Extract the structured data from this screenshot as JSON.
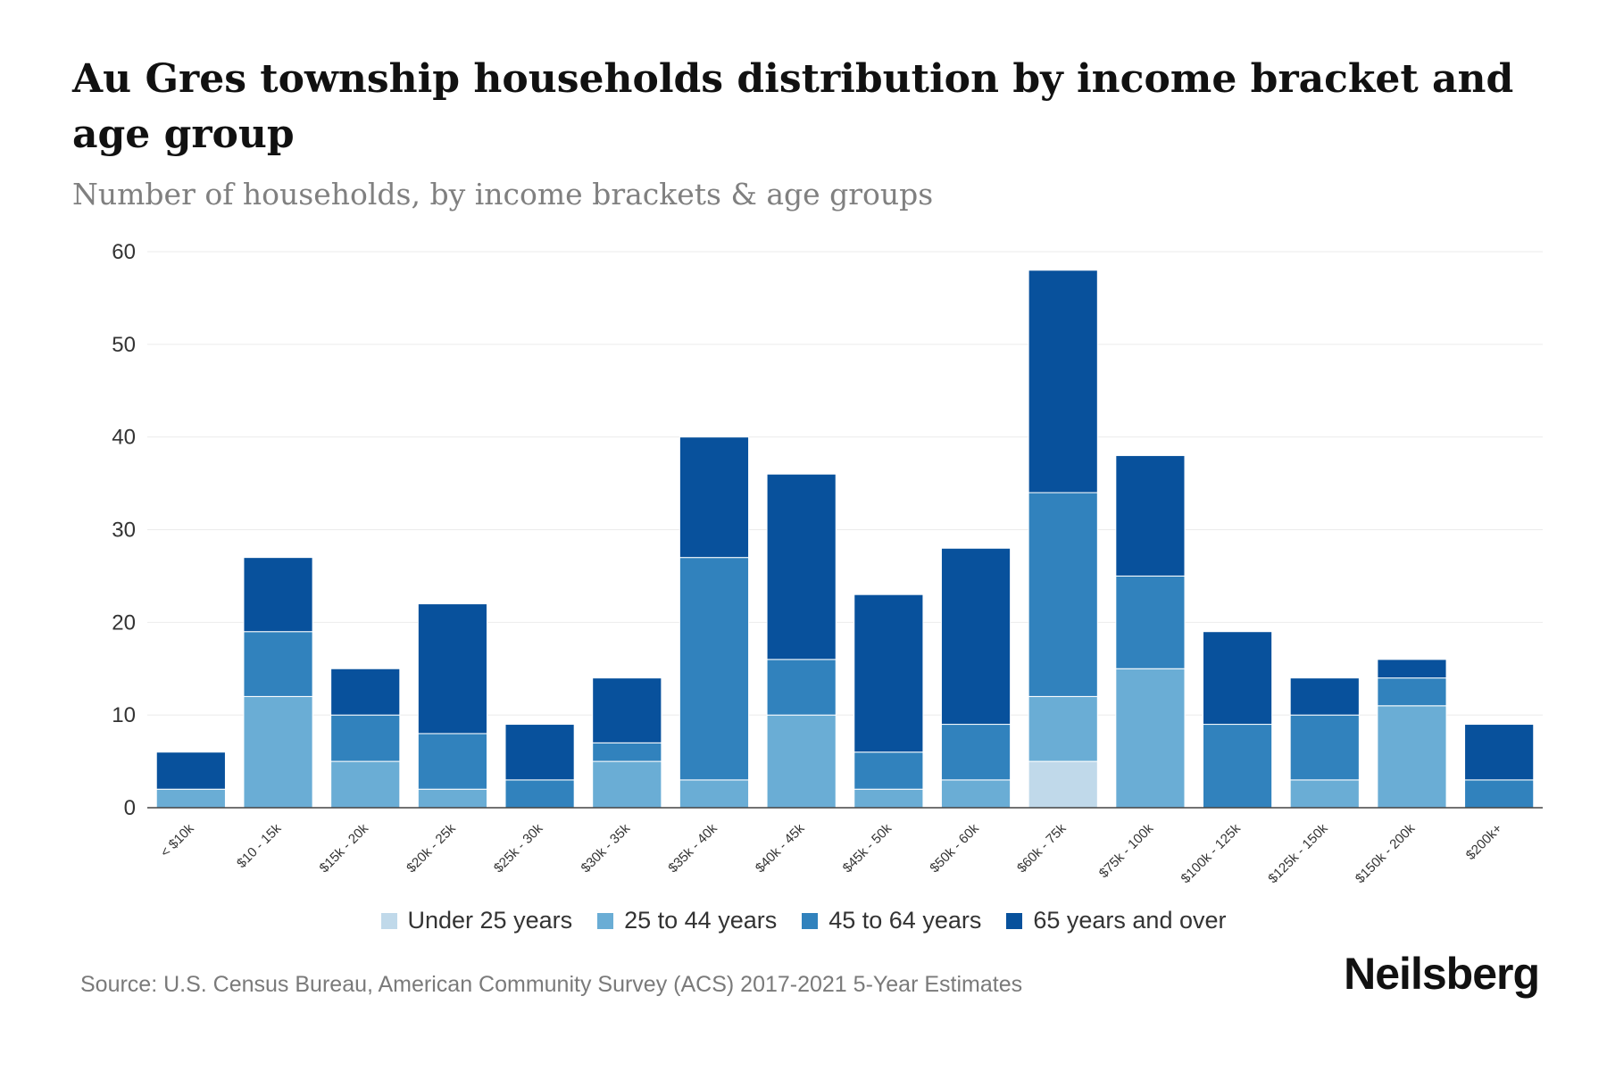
{
  "chart_data": {
    "type": "bar",
    "stacked": true,
    "title": "Au Gres township households distribution by income bracket and age group",
    "subtitle": "Number of households, by income brackets & age groups",
    "xlabel": "",
    "ylabel": "",
    "ylim": [
      0,
      60
    ],
    "yticks": [
      0,
      10,
      20,
      30,
      40,
      50,
      60
    ],
    "grid": true,
    "legend_position": "bottom",
    "categories": [
      "< $10k",
      "$10 - 15k",
      "$15k - 20k",
      "$20k - 25k",
      "$25k - 30k",
      "$30k - 35k",
      "$35k - 40k",
      "$40k - 45k",
      "$45k - 50k",
      "$50k - 60k",
      "$60k - 75k",
      "$75k - 100k",
      "$100k - 125k",
      "$125k - 150k",
      "$150k - 200k",
      "$200k+"
    ],
    "series": [
      {
        "name": "Under 25 years",
        "color": "#c0d9ea",
        "values": [
          0,
          0,
          0,
          0,
          0,
          0,
          0,
          0,
          0,
          0,
          5,
          0,
          0,
          0,
          0,
          0
        ]
      },
      {
        "name": "25 to 44 years",
        "color": "#6aadd5",
        "values": [
          2,
          12,
          5,
          2,
          0,
          5,
          3,
          10,
          2,
          3,
          7,
          15,
          0,
          3,
          11,
          0
        ]
      },
      {
        "name": "45 to 64 years",
        "color": "#3182bd",
        "values": [
          0,
          7,
          5,
          6,
          3,
          2,
          24,
          6,
          4,
          6,
          22,
          10,
          9,
          7,
          3,
          3
        ]
      },
      {
        "name": "65 years and over",
        "color": "#08519c",
        "values": [
          4,
          8,
          5,
          14,
          6,
          7,
          13,
          20,
          17,
          19,
          24,
          13,
          10,
          4,
          2,
          6
        ]
      }
    ]
  },
  "source": "Source: U.S. Census Bureau, American Community Survey (ACS) 2017-2021 5-Year Estimates",
  "brand": "Neilsberg"
}
